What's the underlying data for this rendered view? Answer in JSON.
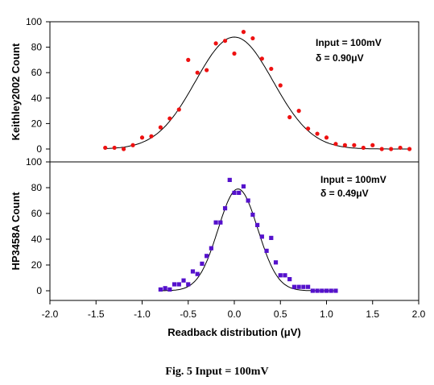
{
  "caption": "Fig. 5  Input = 100mV",
  "chart_data": [
    {
      "type": "scatter",
      "ylabel": "Keithley2002 Count",
      "xlim": [
        -2.0,
        2.0
      ],
      "ylim": [
        0,
        100
      ],
      "yticks": [
        0,
        20,
        40,
        60,
        80,
        100
      ],
      "annotations": [
        "Input  = 100mV",
        "δ        = 0.90μV"
      ],
      "marker": "circle",
      "marker_color": "#ee1111",
      "series": [
        {
          "x": [
            -1.4,
            -1.3,
            -1.2,
            -1.1,
            -1.0,
            -0.9,
            -0.8,
            -0.7,
            -0.6,
            -0.5,
            -0.4,
            -0.3,
            -0.2,
            -0.1,
            0.0,
            0.1,
            0.2,
            0.3,
            0.4,
            0.5,
            0.6,
            0.7,
            0.8,
            0.9,
            1.0,
            1.1,
            1.2,
            1.3,
            1.4,
            1.5,
            1.6,
            1.7,
            1.8,
            1.9
          ],
          "y": [
            1,
            1,
            0,
            3,
            9,
            10,
            17,
            24,
            31,
            70,
            60,
            62,
            83,
            85,
            75,
            92,
            87,
            71,
            63,
            50,
            25,
            30,
            16,
            12,
            9,
            4,
            3,
            3,
            1,
            3,
            0,
            0,
            1,
            0
          ]
        }
      ],
      "fit": {
        "type": "gaussian",
        "amplitude": 88,
        "center": 0.0,
        "sigma": 0.42,
        "x_range": [
          -1.4,
          1.9
        ]
      }
    },
    {
      "type": "scatter",
      "ylabel": "HP3458A Count",
      "xlabel": "Readback distribution (μV)",
      "xlim": [
        -2.0,
        2.0
      ],
      "ylim": [
        -10,
        100
      ],
      "yticks": [
        0,
        20,
        40,
        60,
        80,
        100
      ],
      "xticks": [
        -2.0,
        -1.5,
        -1.0,
        -0.5,
        0.0,
        0.5,
        1.0,
        1.5,
        2.0
      ],
      "xtick_labels": [
        "-2.0",
        "-1.5",
        "-1.0",
        "-0.5",
        "0.0",
        "0.5",
        "1.0",
        "1.5",
        "2.0"
      ],
      "annotations": [
        "Input = 100mV",
        "δ        = 0.49μV"
      ],
      "marker": "square",
      "marker_color": "#5511cc",
      "series": [
        {
          "x": [
            -0.8,
            -0.75,
            -0.7,
            -0.65,
            -0.6,
            -0.55,
            -0.5,
            -0.45,
            -0.4,
            -0.35,
            -0.3,
            -0.25,
            -0.2,
            -0.15,
            -0.1,
            -0.05,
            0.0,
            0.05,
            0.1,
            0.15,
            0.2,
            0.25,
            0.3,
            0.35,
            0.4,
            0.45,
            0.5,
            0.55,
            0.6,
            0.65,
            0.7,
            0.75,
            0.8,
            0.85,
            0.9,
            0.95,
            1.0,
            1.05,
            1.1
          ],
          "y": [
            1,
            2,
            1,
            5,
            5,
            8,
            5,
            15,
            13,
            21,
            27,
            33,
            53,
            53,
            64,
            86,
            76,
            76,
            81,
            70,
            59,
            51,
            42,
            31,
            41,
            22,
            12,
            12,
            9,
            3,
            3,
            3,
            3,
            0,
            0,
            0,
            0,
            0,
            0
          ]
        }
      ],
      "fit": {
        "type": "gaussian",
        "amplitude": 79,
        "center": 0.04,
        "sigma": 0.215,
        "x_range": [
          -0.8,
          1.1
        ]
      }
    }
  ]
}
